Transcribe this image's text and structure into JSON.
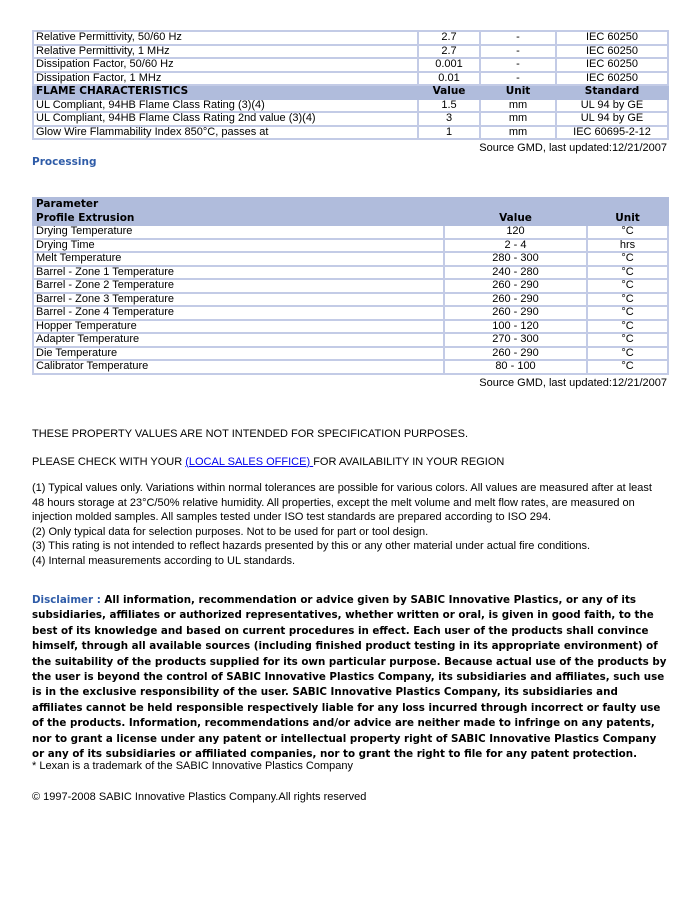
{
  "table1": {
    "rows_top": [
      [
        "Relative Permittivity, 50/60 Hz",
        "2.7",
        "-",
        "IEC 60250"
      ],
      [
        "Relative Permittivity, 1 MHz",
        "2.7",
        "-",
        "IEC 60250"
      ],
      [
        "Dissipation Factor, 50/60 Hz",
        "0.001",
        "-",
        "IEC 60250"
      ],
      [
        "Dissipation Factor, 1 MHz",
        "0.01",
        "-",
        "IEC 60250"
      ]
    ],
    "header": [
      "FLAME CHARACTERISTICS",
      "Value",
      "Unit",
      "Standard"
    ],
    "rows_flame": [
      [
        "UL Compliant, 94HB Flame Class Rating (3)(4)",
        "1.5",
        "mm",
        "UL 94 by GE"
      ],
      [
        "UL Compliant, 94HB Flame Class Rating 2nd value (3)(4)",
        "3",
        "mm",
        "UL 94 by GE"
      ],
      [
        "Glow Wire Flammability Index 850°C, passes at",
        "1",
        "mm",
        "IEC 60695-2-12"
      ]
    ],
    "source": "Source GMD, last updated:12/21/2007"
  },
  "processing": {
    "title": "Processing",
    "header_top": "Parameter",
    "header": [
      "Profile Extrusion",
      "Value",
      "Unit"
    ],
    "rows": [
      [
        "Drying Temperature",
        "120",
        "°C"
      ],
      [
        "Drying Time",
        "2 - 4",
        "hrs"
      ],
      [
        "Melt Temperature",
        "280 - 300",
        "°C"
      ],
      [
        "Barrel - Zone 1 Temperature",
        "240 - 280",
        "°C"
      ],
      [
        "Barrel - Zone 2 Temperature",
        "260 - 290",
        "°C"
      ],
      [
        "Barrel - Zone 3 Temperature",
        "260 - 290",
        "°C"
      ],
      [
        "Barrel - Zone 4 Temperature",
        "260 - 290",
        "°C"
      ],
      [
        "Hopper Temperature",
        "100 - 120",
        "°C"
      ],
      [
        "Adapter Temperature",
        "270 - 300",
        "°C"
      ],
      [
        "Die Temperature",
        "260 - 290",
        "°C"
      ],
      [
        "Calibrator Temperature",
        "80 - 100",
        "°C"
      ]
    ],
    "source": "Source GMD, last updated:12/21/2007"
  },
  "notes": {
    "not_intended": "THESE PROPERTY VALUES ARE NOT INTENDED FOR SPECIFICATION PURPOSES.",
    "check_pre": "PLEASE CHECK WITH YOUR ",
    "check_link": "(LOCAL SALES OFFICE) ",
    "check_post": "FOR AVAILABILITY IN YOUR REGION",
    "footnotes": [
      "(1) Typical values only. Variations within normal tolerances are possible for various colors. All values are measured after at least 48 hours storage at 23°C/50% relative humidity. All properties, except the melt volume and melt flow rates, are measured on injection molded samples. All samples tested under ISO test standards are prepared according to ISO 294.",
      "(2) Only typical data for selection purposes. Not to be used for part or tool design.",
      "(3) This rating is not intended to reflect hazards presented by this or any other material under actual fire conditions.",
      "(4) Internal measurements according to UL standards."
    ]
  },
  "disclaimer": {
    "label": "Disclaimer : ",
    "text": "All information, recommendation or advice given by SABIC Innovative Plastics, or any of its subsidiaries, affiliates or authorized representatives, whether written or oral, is given in good faith, to the best of its knowledge and based on current procedures in effect. Each user of the products shall convince himself, through all available sources (including finished product testing in its appropriate environment) of the suitability of the products supplied for its own particular purpose. Because actual use of the products by the user is beyond the control of SABIC Innovative Plastics Company, its subsidiaries and affiliates, such use is in the exclusive responsibility of the user. SABIC Innovative Plastics Company, its subsidiaries and affiliates cannot be held responsible respectively liable for any loss incurred through incorrect or faulty use of the products. Information, recommendations and/or advice are neither made to infringe on any patents, nor to grant a license under any patent or intellectual property right of SABIC Innovative Plastics Company or any of its subsidiaries or affiliated companies, nor to grant the right to file for any patent protection."
  },
  "trademark": "* Lexan is a trademark of the SABIC Innovative Plastics Company",
  "copyright": "© 1997-2008 SABIC Innovative Plastics Company.All rights reserved"
}
